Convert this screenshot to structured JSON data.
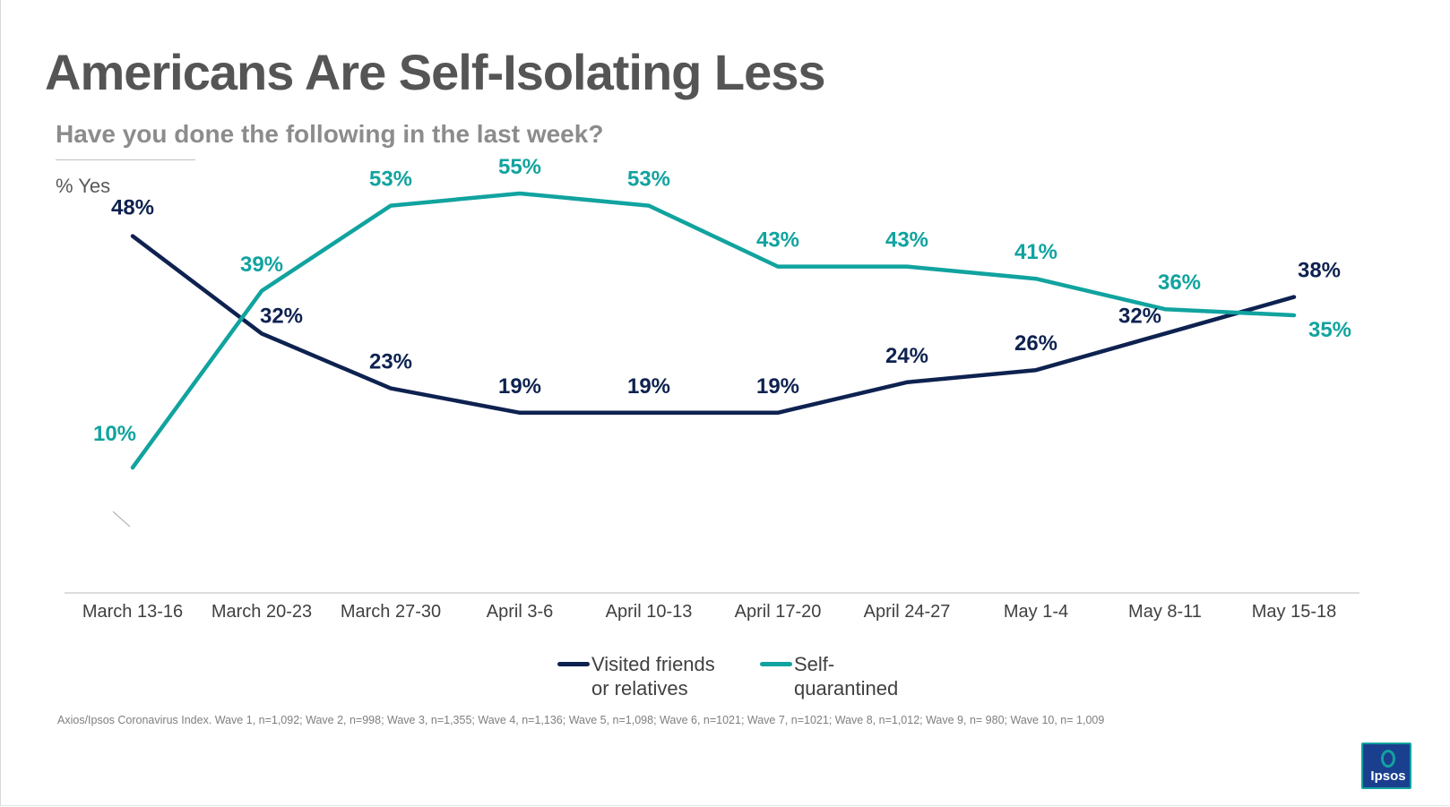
{
  "header": {
    "title": "Americans Are Self-Isolating Less",
    "subtitle": "Have you done the following in the last week?",
    "unit_label": "% Yes"
  },
  "chart_data": {
    "type": "line",
    "categories": [
      "March 13-16",
      "March 20-23",
      "March 27-30",
      "April 3-6",
      "April 10-13",
      "April 17-20",
      "April 24-27",
      "May 1-4",
      "May 8-11",
      "May 15-18"
    ],
    "series": [
      {
        "name": "Visited friends or relatives",
        "legend_lines": [
          "Visited friends",
          "or relatives"
        ],
        "color": "#0e2250",
        "values": [
          48,
          32,
          23,
          19,
          19,
          19,
          24,
          26,
          32,
          38
        ],
        "labels": [
          "48%",
          "32%",
          "23%",
          "19%",
          "19%",
          "19%",
          "24%",
          "26%",
          "32%",
          "38%"
        ]
      },
      {
        "name": "Self-quarantined",
        "legend_lines": [
          "Self-",
          "quarantined"
        ],
        "color": "#11a39f",
        "values": [
          10,
          39,
          53,
          55,
          53,
          43,
          43,
          41,
          36,
          35
        ],
        "labels": [
          "10%",
          "39%",
          "53%",
          "55%",
          "53%",
          "43%",
          "43%",
          "41%",
          "36%",
          "35%"
        ]
      }
    ],
    "ylim": [
      0,
      60
    ],
    "grid": false,
    "legend_position": "bottom-center"
  },
  "footnote": "Axios/Ipsos Coronavirus Index. Wave 1, n=1,092; Wave 2, n=998; Wave 3, n=1,355; Wave 4, n=1,136; Wave 5, n=1,098; Wave 6, n=1021; Wave 7, n=1021; Wave 8, n=1,012; Wave 9, n= 980; Wave 10, n= 1,009",
  "logo": {
    "text": "Ipsos",
    "icon": "ipsos-logo-icon"
  }
}
